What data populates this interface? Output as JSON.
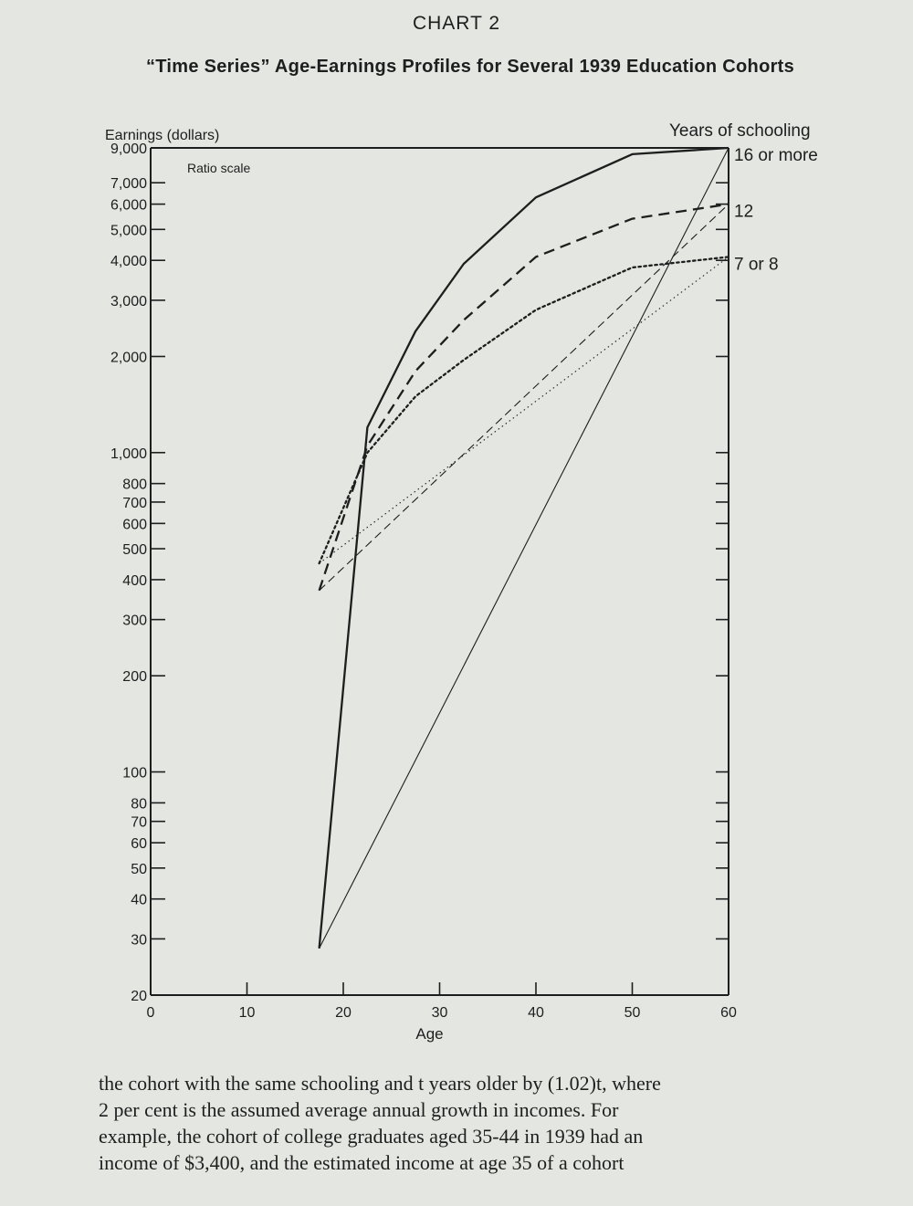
{
  "header": {
    "chart_number": "CHART 2",
    "title": "“Time Series” Age-Earnings Profiles for Several 1939 Education Cohorts"
  },
  "chart_data": {
    "type": "line",
    "title": "“Time Series” Age-Earnings Profiles for Several 1939 Education Cohorts",
    "xlabel": "Age",
    "ylabel": "Earnings (dollars)",
    "right_label": "Years of schooling",
    "scale_note": "Ratio scale",
    "y_scale": "log",
    "xlim": [
      0,
      60
    ],
    "ylim": [
      20,
      9000
    ],
    "x_ticks": [
      0,
      10,
      20,
      30,
      40,
      50,
      60
    ],
    "x_tick_labels": [
      "0",
      "10",
      "20",
      "30",
      "40",
      "50",
      "60"
    ],
    "y_ticks": [
      20,
      30,
      40,
      50,
      60,
      70,
      80,
      100,
      200,
      300,
      400,
      500,
      600,
      700,
      800,
      1000,
      2000,
      3000,
      4000,
      5000,
      6000,
      7000,
      9000
    ],
    "y_tick_labels": [
      "20",
      "30",
      "40",
      "50",
      "60",
      "70",
      "80",
      "100",
      "200",
      "300",
      "400",
      "500",
      "600",
      "700",
      "800",
      "1,000",
      "2,000",
      "3,000",
      "4,000",
      "5,000",
      "6,000",
      "7,000",
      "9,000"
    ],
    "grid": false,
    "series": [
      {
        "name": "16 or more",
        "style": "solid",
        "weight": "heavy",
        "x": [
          17.5,
          22.5,
          27.5,
          32.5,
          40,
          50,
          60
        ],
        "y": [
          28,
          1200,
          2400,
          3900,
          6300,
          8600,
          9000
        ]
      },
      {
        "name": "12",
        "style": "dashed",
        "weight": "heavy",
        "x": [
          17.5,
          22.5,
          27.5,
          32.5,
          40,
          50,
          60
        ],
        "y": [
          370,
          1050,
          1800,
          2600,
          4100,
          5400,
          6000
        ]
      },
      {
        "name": "7 or 8",
        "style": "dotted",
        "weight": "heavy",
        "x": [
          17.5,
          22.5,
          27.5,
          32.5,
          40,
          50,
          60
        ],
        "y": [
          450,
          1000,
          1500,
          1950,
          2800,
          3800,
          4100
        ]
      },
      {
        "name": "16 or more",
        "style": "solid",
        "weight": "thin",
        "x": [
          17.5,
          60
        ],
        "y": [
          28,
          9000
        ]
      },
      {
        "name": "12",
        "style": "dashed",
        "weight": "thin",
        "x": [
          17.5,
          60
        ],
        "y": [
          370,
          6000
        ]
      },
      {
        "name": "7 or 8",
        "style": "dotted",
        "weight": "thin",
        "x": [
          17.5,
          60
        ],
        "y": [
          450,
          4100
        ]
      }
    ],
    "series_labels": [
      "16 or more",
      "12",
      "7 or 8"
    ]
  },
  "body_text": {
    "line1": "the cohort with the same schooling and t years older by (1.02)t, where",
    "line2": "2 per cent is the assumed average annual growth in incomes. For",
    "line3": "example, the cohort of college graduates aged 35-44 in 1939 had an",
    "line4": "income of $3,400, and the estimated income at age 35 of a cohort"
  },
  "colors": {
    "paper": "#e4e6e1",
    "ink": "#1e1e1e"
  }
}
